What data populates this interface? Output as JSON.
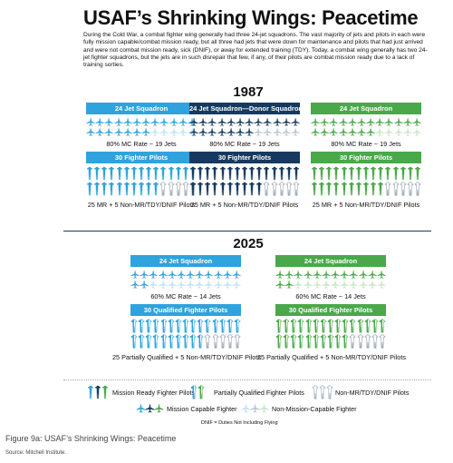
{
  "title": "USAF’s Shrinking Wings: Peacetime",
  "intro": "During the Cold War, a combat fighter wing generally had three 24-jet squadrons. The vast majority of jets and pilots in each were fully mission capable/combat mission ready, but all three had jets that were down for maintenance and pilots that had just arrived and were not combat mission ready, sick (DNIF), or away for extended training (TDY). Today, a combat wing generally has two 24-jet fighter squadrons, but the jets are in such disrepair that few, if any, of their pilots are combat mission ready due to a lack of training sorties.",
  "colors": {
    "light_blue": "#2ea3dd",
    "navy": "#163a5f",
    "green": "#4aa84a",
    "light_blue_pale": "#bfe3f5",
    "navy_pale": "#b9c5d3",
    "green_pale": "#c9e6c6",
    "outline": "#9aa6b2"
  },
  "year_1987": "1987",
  "year_2025": "2025",
  "squadrons_1987": [
    {
      "header": "24 Jet Squadron",
      "color": "#2ea3dd",
      "pale": "#bfe3f5",
      "jets_capable": 19,
      "jets_total": 24,
      "jet_caption": "80% MC Rate ~ 19 Jets",
      "pilots_header": "30 Fighter Pilots",
      "pilots_ready": 25,
      "pilots_partial": 0,
      "pilots_total": 30,
      "pilot_caption": "25 MR + 5 Non-MR/TDY/DNIF Pilots"
    },
    {
      "header": "24 Jet Squadron—Donor Squadron",
      "color": "#163a5f",
      "pale": "#b9c5d3",
      "jets_capable": 19,
      "jets_total": 24,
      "jet_caption": "80% MC Rate ~ 19 Jets",
      "pilots_header": "30 Fighter Pilots",
      "pilots_ready": 25,
      "pilots_partial": 0,
      "pilots_total": 30,
      "pilot_caption": "25 MR + 5 Non-MR/TDY/DNIF Pilots"
    },
    {
      "header": "24 Jet Squadron",
      "color": "#4aa84a",
      "pale": "#c9e6c6",
      "jets_capable": 19,
      "jets_total": 24,
      "jet_caption": "80% MC Rate ~ 19 Jets",
      "pilots_header": "30 Fighter Pilots",
      "pilots_ready": 25,
      "pilots_partial": 0,
      "pilots_total": 30,
      "pilot_caption": "25 MR + 5 Non-MR/TDY/DNIF Pilots"
    }
  ],
  "squadrons_2025": [
    {
      "header": "24 Jet Squadron",
      "color": "#2ea3dd",
      "pale": "#bfe3f5",
      "jets_capable": 14,
      "jets_total": 24,
      "jet_caption": "60% MC Rate ~ 14 Jets",
      "pilots_header": "30 Qualified Fighter Pilots",
      "pilots_ready": 0,
      "pilots_partial": 25,
      "pilots_total": 30,
      "pilot_caption": "25 Partially Qualified + 5 Non-MR/TDY/DNIF Pilots"
    },
    {
      "header": "24 Jet Squadron",
      "color": "#4aa84a",
      "pale": "#c9e6c6",
      "jets_capable": 14,
      "jets_total": 24,
      "jet_caption": "60% MC Rate ~ 14 Jets",
      "pilots_header": "30 Qualified Fighter Pilots",
      "pilots_ready": 0,
      "pilots_partial": 25,
      "pilots_total": 30,
      "pilot_caption": "25 Partially Qualified + 5 Non-MR/TDY/DNIF Pilots"
    }
  ],
  "legend": {
    "mission_ready": "Mission Ready Fighter Pilots",
    "partially_qualified": "Partially Qualified Fighter Pilots",
    "non_mr": "Non-MR/TDY/DNIF Pilots",
    "mission_capable": "Mission Capable Fighter",
    "non_mission_capable": "Non-Mission-Capable Fighter",
    "dnif_note": "DNIF = Duties Not Including Flying"
  },
  "figure_caption": "Figure 9a: USAF’s Shrinking Wings: Peacetime",
  "source": "Source: Mitchell Institute."
}
